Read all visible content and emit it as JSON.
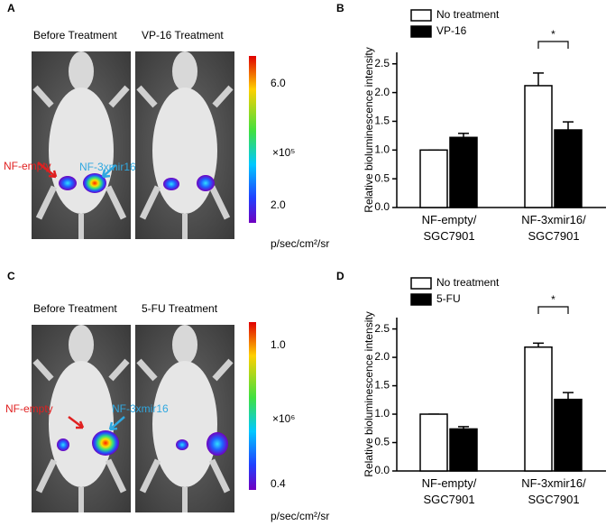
{
  "image_panels": [
    {
      "letter": "A",
      "titles": [
        "Before Treatment",
        "VP-16 Treatment"
      ],
      "labels": [
        "NF-empty",
        "NF-3xmir16"
      ],
      "scale_labels": [
        "6.0",
        "×10⁵",
        "2.0"
      ],
      "unit": "p/sec/cm²/sr"
    },
    {
      "letter": "C",
      "titles": [
        "Before Treatment",
        "5-FU Treatment"
      ],
      "labels": [
        "NF-empty",
        "NF-3xmir16"
      ],
      "scale_labels": [
        "1.0",
        "×10⁶",
        "0.4"
      ],
      "unit": "p/sec/cm²/sr"
    }
  ],
  "chart_data": [
    {
      "type": "bar",
      "letter": "B",
      "ylabel": "Relative bioluminescence intensity",
      "categories": [
        "NF-empty/\nSGC7901",
        "NF-3xmir16/\nSGC7901"
      ],
      "series": [
        {
          "name": "No treatment",
          "color": "#ffffff",
          "values": [
            1.0,
            2.12
          ],
          "errors": [
            0,
            0.22
          ]
        },
        {
          "name": "VP-16",
          "color": "#000000",
          "values": [
            1.22,
            1.35
          ],
          "errors": [
            0.07,
            0.14
          ]
        }
      ],
      "annotation": "*",
      "ylim": [
        0,
        2.7
      ],
      "yticks": [
        {
          "value": 0,
          "label": "0.0"
        },
        0.5,
        {
          "value": 1,
          "label": "1.0"
        },
        1.5,
        {
          "value": 2,
          "label": "2.0"
        },
        2.5
      ]
    },
    {
      "type": "bar",
      "letter": "D",
      "ylabel": "Relative bioluminescence intensity",
      "categories": [
        "NF-empty/\nSGC7901",
        "NF-3xmir16/\nSGC7901"
      ],
      "series": [
        {
          "name": "No treatment",
          "color": "#ffffff",
          "values": [
            1.0,
            2.18
          ],
          "errors": [
            0,
            0.07
          ]
        },
        {
          "name": "5-FU",
          "color": "#000000",
          "values": [
            0.74,
            1.26
          ],
          "errors": [
            0.04,
            0.12
          ]
        }
      ],
      "annotation": "*",
      "ylim": [
        0,
        2.7
      ],
      "yticks": [
        {
          "value": 0,
          "label": "0.0"
        },
        0.5,
        {
          "value": 1,
          "label": "1.0"
        },
        1.5,
        {
          "value": 2,
          "label": "2.0"
        },
        2.5
      ]
    }
  ]
}
